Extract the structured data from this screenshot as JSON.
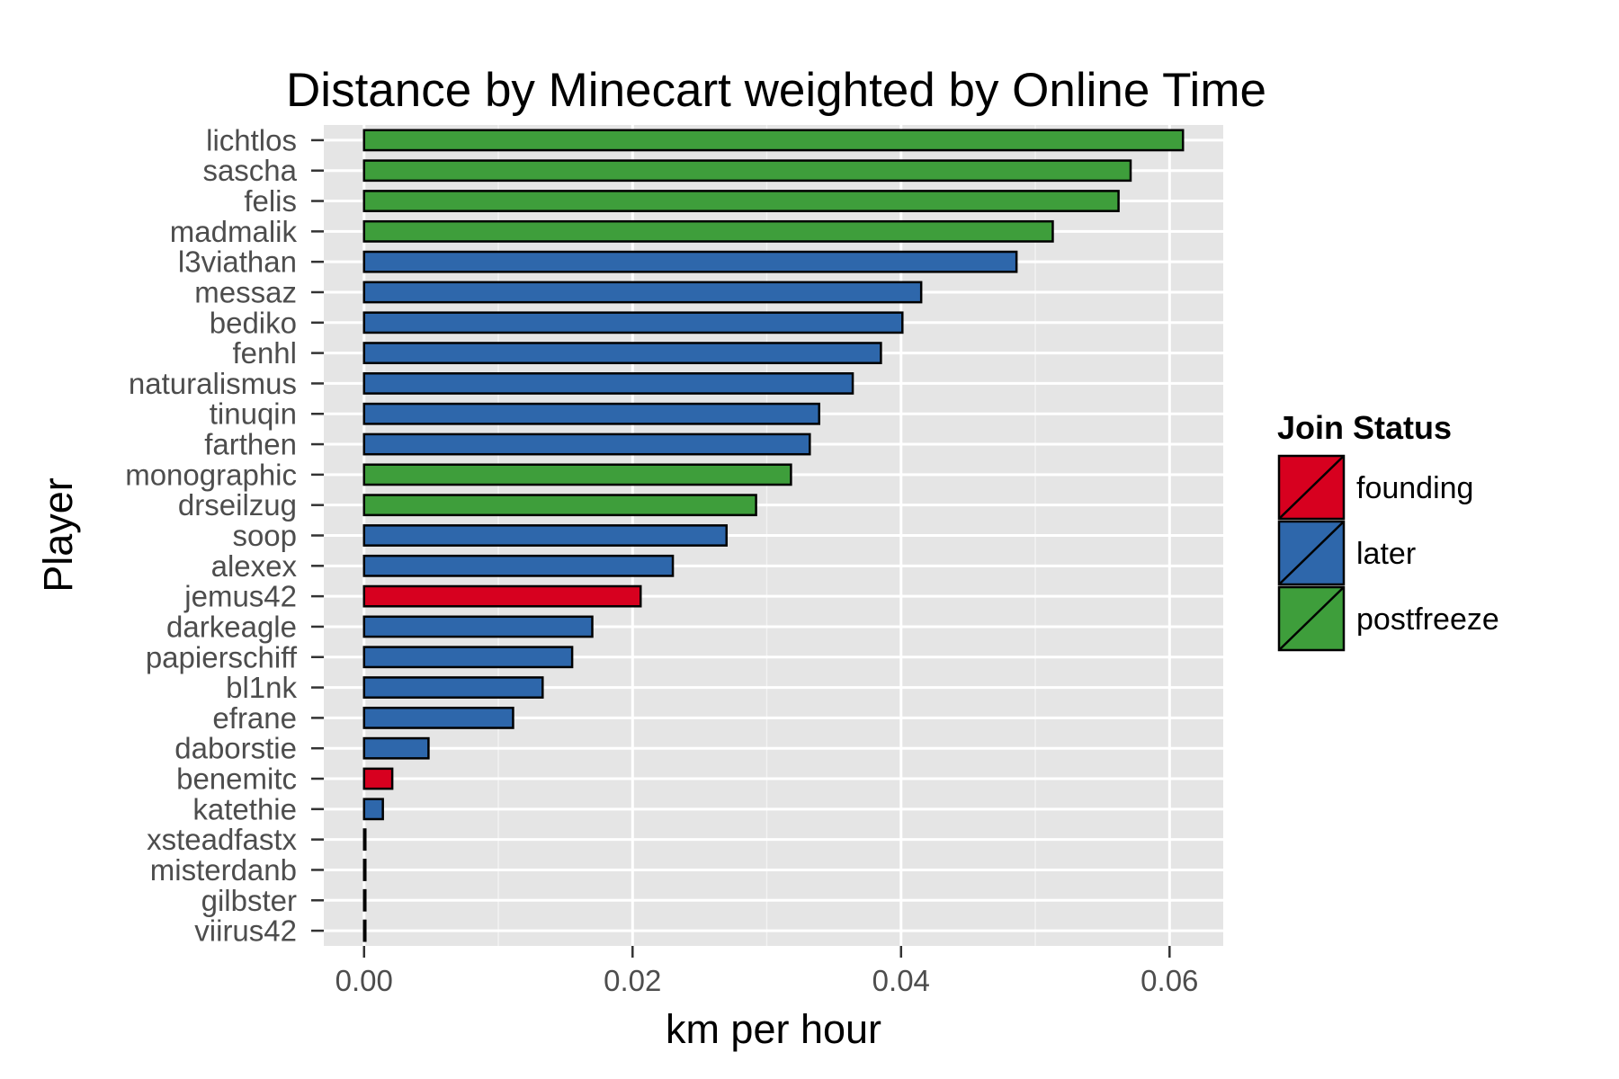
{
  "chart_data": {
    "type": "bar",
    "orientation": "horizontal",
    "title": "Distance by Minecart weighted by Online Time",
    "xlabel": "km per hour",
    "ylabel": "Player",
    "xlim": [
      -0.003,
      0.064
    ],
    "xticks": [
      0.0,
      0.02,
      0.04,
      0.06
    ],
    "xtick_labels": [
      "0.00",
      "0.02",
      "0.04",
      "0.06"
    ],
    "grid": true,
    "legend": {
      "title": "Join Status",
      "placement": "right",
      "entries": [
        {
          "label": "founding",
          "color": "#d7001f"
        },
        {
          "label": "later",
          "color": "#2e67ab"
        },
        {
          "label": "postfreeze",
          "color": "#3e9e3b"
        }
      ]
    },
    "categories": [
      "lichtlos",
      "sascha",
      "felis",
      "madmalik",
      "l3viathan",
      "messaz",
      "bediko",
      "fenhl",
      "naturalismus",
      "tinuqin",
      "farthen",
      "monographic",
      "drseilzug",
      "soop",
      "alexex",
      "jemus42",
      "darkeagle",
      "papierschiff",
      "bl1nk",
      "efrane",
      "daborstie",
      "benemitc",
      "katethie",
      "xsteadfastx",
      "misterdanb",
      "gilbster",
      "viirus42"
    ],
    "values": [
      0.061,
      0.0571,
      0.0562,
      0.0513,
      0.0486,
      0.0415,
      0.0401,
      0.0385,
      0.0364,
      0.0339,
      0.0332,
      0.0318,
      0.0292,
      0.027,
      0.023,
      0.0206,
      0.017,
      0.0155,
      0.0133,
      0.0111,
      0.0048,
      0.0021,
      0.0014,
      0.0001,
      0.0001,
      0.0001,
      0.0001
    ],
    "groups": [
      "postfreeze",
      "postfreeze",
      "postfreeze",
      "postfreeze",
      "later",
      "later",
      "later",
      "later",
      "later",
      "later",
      "later",
      "postfreeze",
      "postfreeze",
      "later",
      "later",
      "founding",
      "later",
      "later",
      "later",
      "later",
      "later",
      "founding",
      "later",
      "later",
      "later",
      "later",
      "later"
    ]
  },
  "colors": {
    "panel_background": "#e5e5e5",
    "grid_major": "#ffffff",
    "grid_minor": "#f2f2f2",
    "bar_outline": "#000000"
  }
}
